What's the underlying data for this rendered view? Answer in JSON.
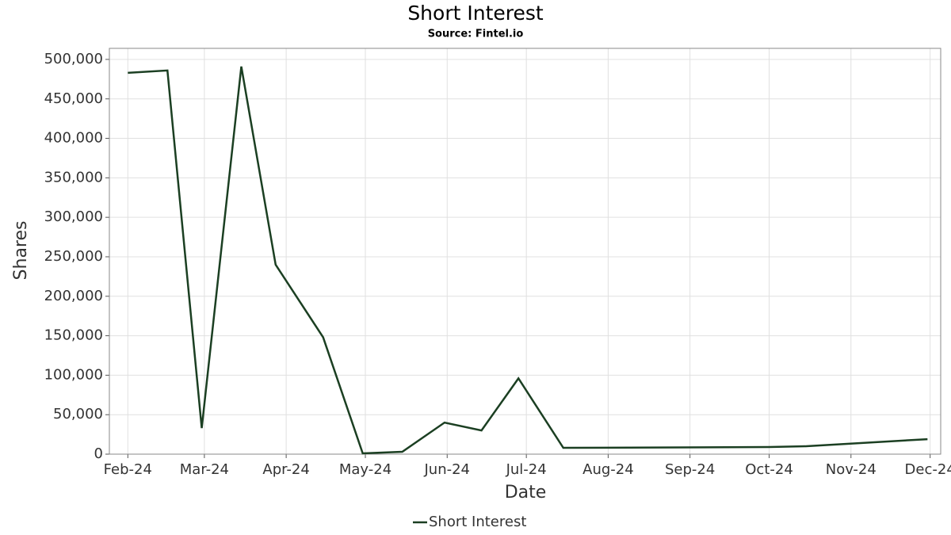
{
  "chart_data": {
    "type": "line",
    "title": "Short Interest",
    "subtitle": "Source: Fintel.io",
    "x_label": "Date",
    "y_label": "Shares",
    "x": [
      31,
      46,
      59,
      74,
      87,
      105,
      120,
      135,
      151,
      165,
      179,
      196,
      274,
      288,
      334
    ],
    "series": [
      {
        "name": "Short Interest",
        "color": "#1b3f22",
        "values": [
          483000,
          486000,
          33000,
          491000,
          240000,
          148000,
          1000,
          3000,
          40000,
          30000,
          96000,
          8000,
          9000,
          10000,
          19000
        ]
      }
    ],
    "xlim": [
      24,
      339
    ],
    "ylim": [
      0,
      514000
    ],
    "xticks": [
      {
        "value": 31,
        "label": "Feb-24"
      },
      {
        "value": 60,
        "label": "Mar-24"
      },
      {
        "value": 91,
        "label": "Apr-24"
      },
      {
        "value": 121,
        "label": "May-24"
      },
      {
        "value": 152,
        "label": "Jun-24"
      },
      {
        "value": 182,
        "label": "Jul-24"
      },
      {
        "value": 213,
        "label": "Aug-24"
      },
      {
        "value": 244,
        "label": "Sep-24"
      },
      {
        "value": 274,
        "label": "Oct-24"
      },
      {
        "value": 305,
        "label": "Nov-24"
      },
      {
        "value": 335,
        "label": "Dec-24"
      }
    ],
    "yticks": [
      0,
      {
        "value": 50000,
        "label": "50,000"
      },
      {
        "value": 100000,
        "label": "100,000"
      },
      {
        "value": 150000,
        "label": "150,000"
      },
      {
        "value": 200000,
        "label": "200,000"
      },
      {
        "value": 250000,
        "label": "250,000"
      },
      {
        "value": 300000,
        "label": "300,000"
      },
      {
        "value": 350000,
        "label": "350,000"
      },
      {
        "value": 400000,
        "label": "400,000"
      },
      {
        "value": 450000,
        "label": "450,000"
      },
      {
        "value": 500000,
        "label": "500,000"
      }
    ],
    "grid": true
  }
}
